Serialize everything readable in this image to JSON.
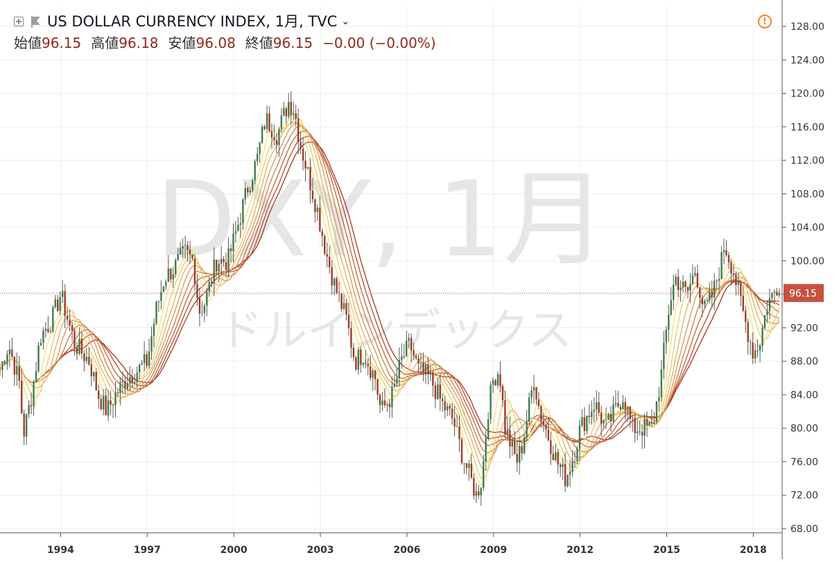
{
  "header": {
    "symbol_title": "US DOLLAR CURRENCY INDEX, 1月, TVC",
    "open_label": "始値",
    "open_value": "96.15",
    "high_label": "高値",
    "high_value": "96.18",
    "low_label": "安値",
    "low_value": "96.08",
    "close_label": "終値",
    "close_value": "96.15",
    "change": "−0.00 (−0.00%)"
  },
  "watermark": {
    "main": "DXY, 1月",
    "sub": "ドルインデックス"
  },
  "last_price_label": "96.15",
  "colors": {
    "up_candle": "#3f7c4a",
    "down_candle": "#a23a22",
    "wick": "#555555",
    "price_line": "#d9534f",
    "ma_short": "#f6e27a",
    "ma_long": "#a8321d",
    "warning": "#ef8b22"
  },
  "icons": [
    "add-box-icon",
    "flag-icon",
    "chevron-down-icon",
    "warning-icon"
  ],
  "chart_data": {
    "type": "candlestick",
    "title": "US DOLLAR CURRENCY INDEX, 1月, TVC",
    "x_ticks": [
      "1994",
      "1997",
      "2000",
      "2003",
      "2006",
      "2009",
      "2012",
      "2015",
      "2018"
    ],
    "y_ticks": [
      "128.00",
      "124.00",
      "120.00",
      "116.00",
      "112.00",
      "108.00",
      "104.00",
      "100.00",
      "96.00",
      "92.00",
      "88.00",
      "84.00",
      "80.00",
      "76.00",
      "72.00",
      "68.00"
    ],
    "ylim": [
      68,
      128
    ],
    "x_range": [
      1991.9,
      2019.0
    ],
    "last_price": 96.15,
    "close_path": [
      [
        1991.9,
        87
      ],
      [
        1992.2,
        90
      ],
      [
        1992.6,
        85
      ],
      [
        1992.7,
        79
      ],
      [
        1993.0,
        84
      ],
      [
        1993.3,
        91
      ],
      [
        1993.7,
        93
      ],
      [
        1994.0,
        96
      ],
      [
        1994.5,
        90
      ],
      [
        1995.0,
        88
      ],
      [
        1995.3,
        84
      ],
      [
        1995.6,
        82
      ],
      [
        1995.9,
        84
      ],
      [
        1996.3,
        86
      ],
      [
        1996.7,
        87
      ],
      [
        1997.0,
        88
      ],
      [
        1997.3,
        94
      ],
      [
        1997.6,
        98
      ],
      [
        1997.9,
        99
      ],
      [
        1998.3,
        101
      ],
      [
        1998.6,
        100
      ],
      [
        1998.8,
        94
      ],
      [
        1999.0,
        95
      ],
      [
        1999.4,
        100
      ],
      [
        1999.8,
        100
      ],
      [
        2000.2,
        105
      ],
      [
        2000.5,
        109
      ],
      [
        2000.8,
        112
      ],
      [
        2001.1,
        117
      ],
      [
        2001.5,
        115
      ],
      [
        2001.9,
        119
      ],
      [
        2002.1,
        118
      ],
      [
        2002.3,
        114
      ],
      [
        2002.6,
        110
      ],
      [
        2002.9,
        106
      ],
      [
        2003.2,
        101
      ],
      [
        2003.5,
        97
      ],
      [
        2003.9,
        93
      ],
      [
        2004.2,
        88
      ],
      [
        2004.5,
        89
      ],
      [
        2004.9,
        86
      ],
      [
        2005.1,
        82
      ],
      [
        2005.5,
        84
      ],
      [
        2005.8,
        88
      ],
      [
        2006.1,
        90
      ],
      [
        2006.4,
        87
      ],
      [
        2006.8,
        86
      ],
      [
        2007.2,
        83
      ],
      [
        2007.6,
        81
      ],
      [
        2007.9,
        77
      ],
      [
        2008.2,
        74
      ],
      [
        2008.4,
        72
      ],
      [
        2008.6,
        74
      ],
      [
        2008.8,
        82
      ],
      [
        2009.0,
        86
      ],
      [
        2009.2,
        87
      ],
      [
        2009.4,
        80
      ],
      [
        2009.8,
        76
      ],
      [
        2010.0,
        78
      ],
      [
        2010.4,
        86
      ],
      [
        2010.6,
        82
      ],
      [
        2010.9,
        79
      ],
      [
        2011.2,
        76
      ],
      [
        2011.5,
        74
      ],
      [
        2011.8,
        77
      ],
      [
        2012.0,
        80
      ],
      [
        2012.5,
        83
      ],
      [
        2012.9,
        80
      ],
      [
        2013.2,
        82
      ],
      [
        2013.5,
        84
      ],
      [
        2013.8,
        80
      ],
      [
        2014.2,
        80
      ],
      [
        2014.5,
        80
      ],
      [
        2014.8,
        86
      ],
      [
        2015.1,
        95
      ],
      [
        2015.3,
        98
      ],
      [
        2015.7,
        96
      ],
      [
        2016.0,
        99
      ],
      [
        2016.3,
        94
      ],
      [
        2016.6,
        96
      ],
      [
        2016.9,
        100
      ],
      [
        2017.0,
        102
      ],
      [
        2017.3,
        99
      ],
      [
        2017.7,
        93
      ],
      [
        2018.0,
        89
      ],
      [
        2018.2,
        90
      ],
      [
        2018.5,
        95
      ],
      [
        2018.7,
        96
      ],
      [
        2018.8,
        97
      ],
      [
        2018.95,
        96.15
      ]
    ],
    "moving_averages": 8
  }
}
